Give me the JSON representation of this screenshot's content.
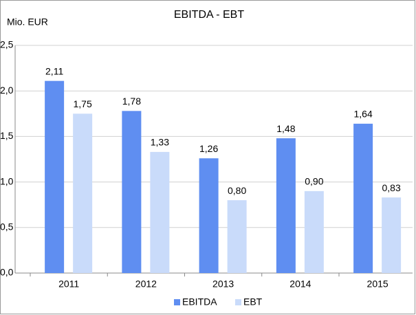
{
  "chart_data": {
    "type": "bar",
    "title": "EBITDA - EBT",
    "y_label": "Mio. EUR",
    "categories": [
      "2011",
      "2012",
      "2013",
      "2014",
      "2015"
    ],
    "series": [
      {
        "name": "EBITDA",
        "color": "#5f8ef1",
        "values": [
          2.11,
          1.78,
          1.26,
          1.48,
          1.64
        ],
        "value_labels": [
          "2,11",
          "1,78",
          "1,26",
          "1,48",
          "1,64"
        ]
      },
      {
        "name": "EBT",
        "color": "#c9dbfa",
        "values": [
          1.75,
          1.33,
          0.8,
          0.9,
          0.83
        ],
        "value_labels": [
          "1,75",
          "1,33",
          "0,80",
          "0,90",
          "0,83"
        ]
      }
    ],
    "ylim": [
      0,
      2.5
    ],
    "yticks": [
      {
        "value": 0,
        "label": "0,0"
      },
      {
        "value": 0.5,
        "label": "0,5"
      },
      {
        "value": 1,
        "label": "1,0"
      },
      {
        "value": 1.5,
        "label": "1,5"
      },
      {
        "value": 2,
        "label": "2,0"
      },
      {
        "value": 2.5,
        "label": "2,5"
      }
    ],
    "grid": true,
    "legend": "bottom"
  }
}
